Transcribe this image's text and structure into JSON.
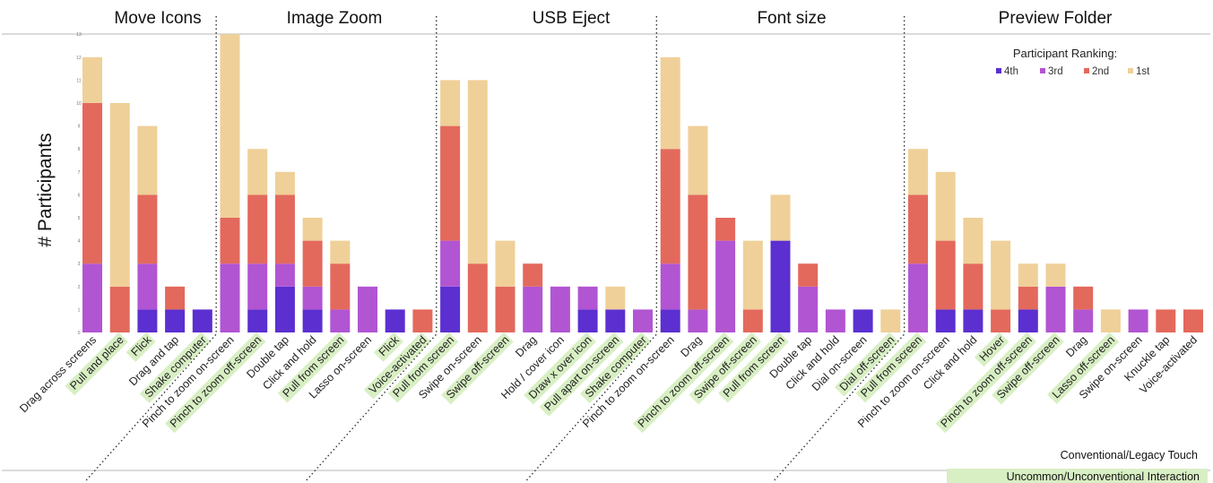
{
  "chart_data": {
    "type": "bar",
    "stacked": true,
    "ylabel": "# Participants",
    "ylim": [
      0,
      13
    ],
    "y_ticks": [
      "0",
      "1",
      "2",
      "3",
      "4",
      "5",
      "6",
      "7",
      "8",
      "9",
      "10",
      "11",
      "12",
      "13"
    ],
    "legend": {
      "title": "Participant Ranking:",
      "placement": "top-right",
      "items": [
        {
          "label": "4th",
          "color": "#5b2fd0"
        },
        {
          "label": "3rd",
          "color": "#b155d2"
        },
        {
          "label": "2nd",
          "color": "#e3695c"
        },
        {
          "label": "1st",
          "color": "#efd098"
        }
      ]
    },
    "series_names": [
      "4th",
      "3rd",
      "2nd",
      "1st"
    ],
    "series_colors": [
      "#5b2fd0",
      "#b155d2",
      "#e3695c",
      "#efd098"
    ],
    "groups": [
      {
        "title": "Move Icons",
        "bars": [
          {
            "label": "Drag across screens",
            "values": [
              0,
              3,
              7,
              2
            ],
            "unconventional": false
          },
          {
            "label": "Pull and place",
            "values": [
              0,
              0,
              2,
              8
            ],
            "unconventional": true
          },
          {
            "label": "Flick",
            "values": [
              1,
              2,
              3,
              3
            ],
            "unconventional": true
          },
          {
            "label": "Drag and tap",
            "values": [
              1,
              0,
              1,
              0
            ],
            "unconventional": false
          },
          {
            "label": "Shake computer",
            "values": [
              1,
              0,
              0,
              0
            ],
            "unconventional": true
          }
        ]
      },
      {
        "title": "Image Zoom",
        "bars": [
          {
            "label": "Pinch to zoom on-screen",
            "values": [
              0,
              3,
              2,
              8
            ],
            "unconventional": false
          },
          {
            "label": "Pinch to zoom off-screen",
            "values": [
              1,
              2,
              3,
              2
            ],
            "unconventional": true
          },
          {
            "label": "Double tap",
            "values": [
              2,
              1,
              3,
              1
            ],
            "unconventional": false
          },
          {
            "label": "Click and hold",
            "values": [
              1,
              1,
              2,
              1
            ],
            "unconventional": false
          },
          {
            "label": "Pull from screen",
            "values": [
              0,
              1,
              2,
              1
            ],
            "unconventional": true
          },
          {
            "label": "Lasso on-screen",
            "values": [
              0,
              2,
              0,
              0
            ],
            "unconventional": false
          },
          {
            "label": "Flick",
            "values": [
              1,
              0,
              0,
              0
            ],
            "unconventional": true
          },
          {
            "label": "Voice-activated",
            "values": [
              0,
              0,
              1,
              0
            ],
            "unconventional": true
          }
        ]
      },
      {
        "title": "USB Eject",
        "bars": [
          {
            "label": "Pull from screen",
            "values": [
              2,
              2,
              5,
              2
            ],
            "unconventional": true
          },
          {
            "label": "Swipe on-screen",
            "values": [
              0,
              0,
              3,
              8
            ],
            "unconventional": false
          },
          {
            "label": "Swipe off-screen",
            "values": [
              0,
              0,
              2,
              2
            ],
            "unconventional": true
          },
          {
            "label": "Drag",
            "values": [
              0,
              2,
              1,
              0
            ],
            "unconventional": false
          },
          {
            "label": "Hold / cover icon",
            "values": [
              0,
              2,
              0,
              0
            ],
            "unconventional": false
          },
          {
            "label": "Draw x over icon",
            "values": [
              1,
              1,
              0,
              0
            ],
            "unconventional": true
          },
          {
            "label": "Pull apart on-screen",
            "values": [
              1,
              0,
              0,
              1
            ],
            "unconventional": true
          },
          {
            "label": "Shake computer",
            "values": [
              0,
              1,
              0,
              0
            ],
            "unconventional": true
          }
        ]
      },
      {
        "title": "Font size",
        "bars": [
          {
            "label": "Pinch to zoom on-screen",
            "values": [
              1,
              2,
              5,
              4
            ],
            "unconventional": false
          },
          {
            "label": "Drag",
            "values": [
              0,
              1,
              5,
              3
            ],
            "unconventional": false
          },
          {
            "label": "Pinch to zoom off-screen",
            "values": [
              0,
              4,
              1,
              0
            ],
            "unconventional": true
          },
          {
            "label": "Swipe off-screen",
            "values": [
              0,
              0,
              1,
              3
            ],
            "unconventional": true
          },
          {
            "label": "Pull from screen",
            "values": [
              4,
              0,
              0,
              2
            ],
            "unconventional": true
          },
          {
            "label": "Double tap",
            "values": [
              0,
              2,
              1,
              0
            ],
            "unconventional": false
          },
          {
            "label": "Click and hold",
            "values": [
              0,
              1,
              0,
              0
            ],
            "unconventional": false
          },
          {
            "label": "Dial on-screen",
            "values": [
              1,
              0,
              0,
              0
            ],
            "unconventional": false
          },
          {
            "label": "Dial off-screen",
            "values": [
              0,
              0,
              0,
              1
            ],
            "unconventional": true
          }
        ]
      },
      {
        "title": "Preview Folder",
        "bars": [
          {
            "label": "Pull from screen",
            "values": [
              0,
              3,
              3,
              2
            ],
            "unconventional": true
          },
          {
            "label": "Pinch to zoom on-screen",
            "values": [
              1,
              0,
              3,
              3
            ],
            "unconventional": false
          },
          {
            "label": "Click and hold",
            "values": [
              1,
              0,
              2,
              2
            ],
            "unconventional": false
          },
          {
            "label": "Hover",
            "values": [
              0,
              0,
              1,
              3
            ],
            "unconventional": true
          },
          {
            "label": "Pinch to zoom off-screen",
            "values": [
              1,
              0,
              1,
              1
            ],
            "unconventional": true
          },
          {
            "label": "Swipe off-screen",
            "values": [
              0,
              2,
              0,
              1
            ],
            "unconventional": true
          },
          {
            "label": "Drag",
            "values": [
              0,
              1,
              1,
              0
            ],
            "unconventional": false
          },
          {
            "label": "Lasso off-screen",
            "values": [
              0,
              0,
              0,
              1
            ],
            "unconventional": true
          },
          {
            "label": "Swipe on-screen",
            "values": [
              0,
              1,
              0,
              0
            ],
            "unconventional": false
          },
          {
            "label": "Knuckle tap",
            "values": [
              0,
              0,
              1,
              0
            ],
            "unconventional": false
          },
          {
            "label": "Voice-activated",
            "values": [
              0,
              0,
              1,
              0
            ],
            "unconventional": false
          }
        ]
      }
    ],
    "annotations": {
      "conventional": "Conventional/Legacy Touch",
      "unconventional": "Uncommon/Unconventional Interaction",
      "highlight_color": "#d8efc4"
    }
  }
}
